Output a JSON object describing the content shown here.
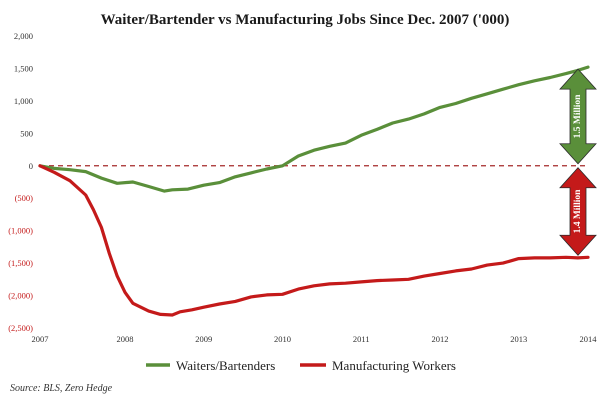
{
  "chart_data": {
    "type": "line",
    "title": "Waiter/Bartender vs Manufacturing Jobs Since Dec. 2007 ('000)",
    "xlabel": "",
    "ylabel": "",
    "ylim": [
      -2500,
      2000
    ],
    "xlim": [
      2007.92,
      2014.88
    ],
    "yticks": [
      {
        "value": 2000,
        "label": "2,000"
      },
      {
        "value": 1500,
        "label": "1,500"
      },
      {
        "value": 1000,
        "label": "1,000"
      },
      {
        "value": 500,
        "label": "500"
      },
      {
        "value": 0,
        "label": "0"
      },
      {
        "value": -500,
        "label": "(500)"
      },
      {
        "value": -1000,
        "label": "(1,000)"
      },
      {
        "value": -1500,
        "label": "(1,500)"
      },
      {
        "value": -2000,
        "label": "(2,000)"
      },
      {
        "value": -2500,
        "label": "(2,500)"
      }
    ],
    "xticks": [
      {
        "value": 2007.92,
        "label": "2007"
      },
      {
        "value": 2009,
        "label": "2008"
      },
      {
        "value": 2010,
        "label": "2009"
      },
      {
        "value": 2011,
        "label": "2010"
      },
      {
        "value": 2012,
        "label": "2011"
      },
      {
        "value": 2013,
        "label": "2012"
      },
      {
        "value": 2014,
        "label": "2013"
      },
      {
        "value": 2014.88,
        "label": "2014"
      }
    ],
    "grid": false,
    "zero_line": "dashed",
    "legend": "bottom",
    "series": [
      {
        "name": "Waiters/Bartenders",
        "color": "#5a8f3a",
        "points": [
          [
            2007.92,
            0
          ],
          [
            2008.1,
            -40
          ],
          [
            2008.3,
            -60
          ],
          [
            2008.5,
            -90
          ],
          [
            2008.7,
            -190
          ],
          [
            2008.9,
            -270
          ],
          [
            2009.1,
            -250
          ],
          [
            2009.3,
            -320
          ],
          [
            2009.5,
            -390
          ],
          [
            2009.6,
            -370
          ],
          [
            2009.8,
            -360
          ],
          [
            2010.0,
            -300
          ],
          [
            2010.2,
            -260
          ],
          [
            2010.4,
            -170
          ],
          [
            2010.6,
            -110
          ],
          [
            2010.8,
            -50
          ],
          [
            2011.0,
            0
          ],
          [
            2011.2,
            150
          ],
          [
            2011.4,
            240
          ],
          [
            2011.6,
            300
          ],
          [
            2011.8,
            350
          ],
          [
            2012.0,
            470
          ],
          [
            2012.2,
            560
          ],
          [
            2012.4,
            660
          ],
          [
            2012.6,
            720
          ],
          [
            2012.8,
            800
          ],
          [
            2013.0,
            900
          ],
          [
            2013.2,
            960
          ],
          [
            2013.4,
            1040
          ],
          [
            2013.6,
            1110
          ],
          [
            2013.8,
            1180
          ],
          [
            2014.0,
            1250
          ],
          [
            2014.2,
            1310
          ],
          [
            2014.4,
            1360
          ],
          [
            2014.6,
            1420
          ],
          [
            2014.75,
            1470
          ],
          [
            2014.88,
            1520
          ]
        ]
      },
      {
        "name": "Manufacturing Workers",
        "color": "#c41a1a",
        "points": [
          [
            2007.92,
            0
          ],
          [
            2008.1,
            -100
          ],
          [
            2008.3,
            -230
          ],
          [
            2008.5,
            -450
          ],
          [
            2008.6,
            -680
          ],
          [
            2008.7,
            -950
          ],
          [
            2008.8,
            -1350
          ],
          [
            2008.9,
            -1700
          ],
          [
            2009.0,
            -1950
          ],
          [
            2009.1,
            -2120
          ],
          [
            2009.2,
            -2180
          ],
          [
            2009.3,
            -2240
          ],
          [
            2009.45,
            -2290
          ],
          [
            2009.6,
            -2300
          ],
          [
            2009.7,
            -2250
          ],
          [
            2009.85,
            -2220
          ],
          [
            2010.0,
            -2180
          ],
          [
            2010.2,
            -2130
          ],
          [
            2010.4,
            -2090
          ],
          [
            2010.6,
            -2020
          ],
          [
            2010.8,
            -1990
          ],
          [
            2011.0,
            -1980
          ],
          [
            2011.2,
            -1900
          ],
          [
            2011.4,
            -1850
          ],
          [
            2011.6,
            -1820
          ],
          [
            2011.8,
            -1810
          ],
          [
            2012.0,
            -1790
          ],
          [
            2012.2,
            -1770
          ],
          [
            2012.4,
            -1760
          ],
          [
            2012.6,
            -1750
          ],
          [
            2012.8,
            -1700
          ],
          [
            2013.0,
            -1660
          ],
          [
            2013.2,
            -1620
          ],
          [
            2013.4,
            -1590
          ],
          [
            2013.6,
            -1530
          ],
          [
            2013.8,
            -1500
          ],
          [
            2014.0,
            -1430
          ],
          [
            2014.2,
            -1420
          ],
          [
            2014.4,
            -1420
          ],
          [
            2014.6,
            -1410
          ],
          [
            2014.75,
            -1420
          ],
          [
            2014.88,
            -1410
          ]
        ]
      }
    ],
    "annotations": [
      {
        "text": "1.5 Million",
        "color": "#5a8f3a",
        "from": 1520,
        "to": 0
      },
      {
        "text": "1.4 Million",
        "color": "#c41a1a",
        "from": 0,
        "to": -1410
      }
    ],
    "source": "Source: BLS, Zero Hedge"
  }
}
